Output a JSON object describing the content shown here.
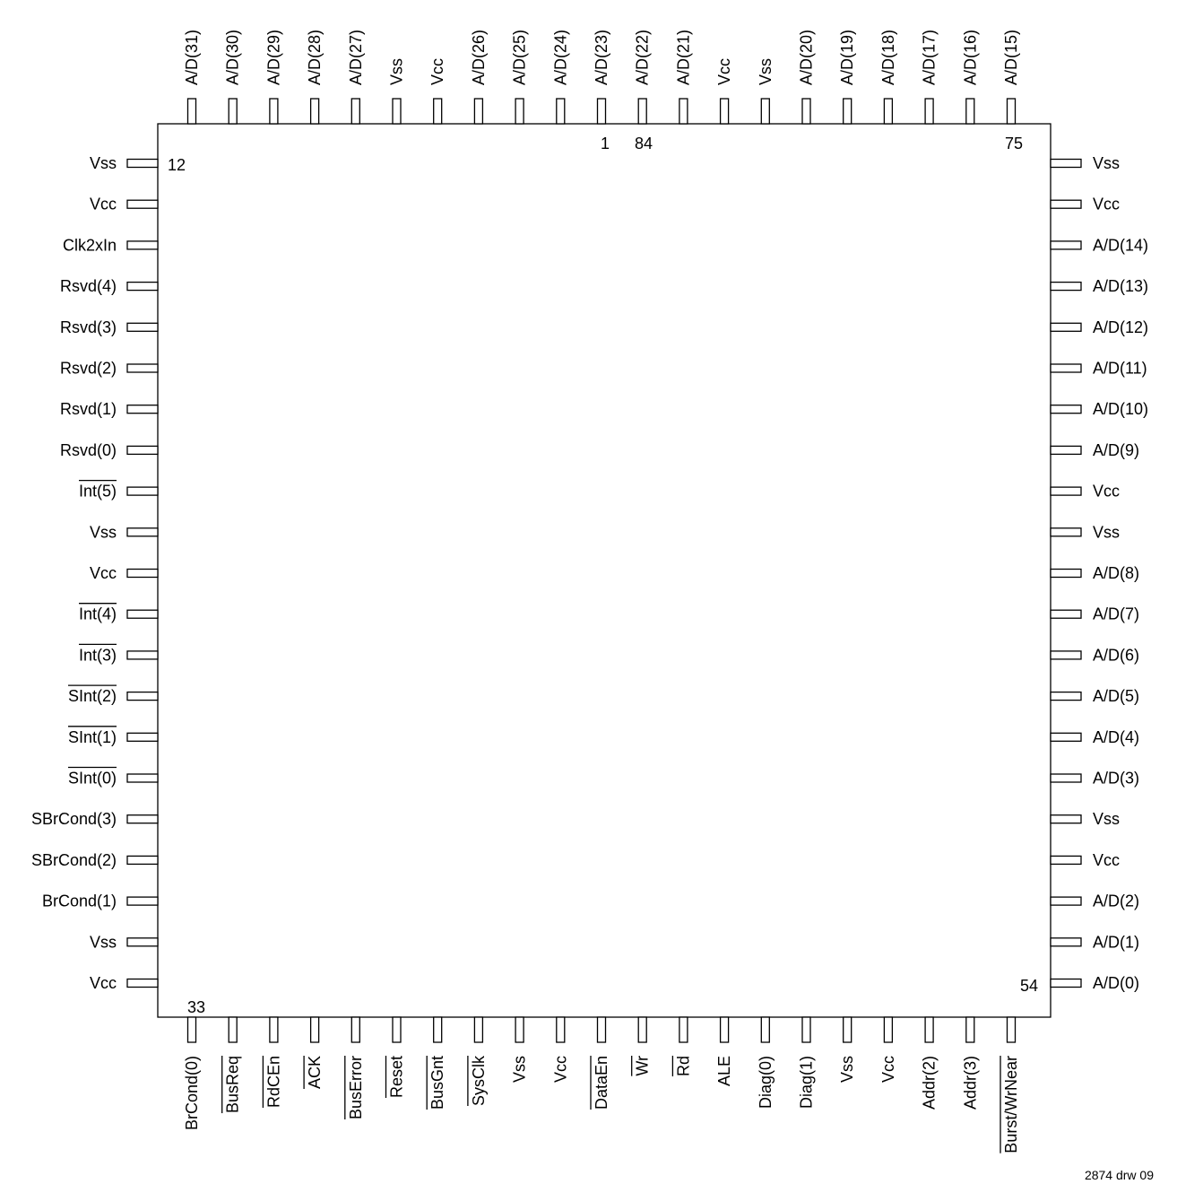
{
  "pins": {
    "top": [
      {
        "label": "A/D(31)"
      },
      {
        "label": "A/D(30)"
      },
      {
        "label": "A/D(29)"
      },
      {
        "label": "A/D(28)"
      },
      {
        "label": "A/D(27)"
      },
      {
        "label": "Vss"
      },
      {
        "label": "Vcc"
      },
      {
        "label": "A/D(26)"
      },
      {
        "label": "A/D(25)"
      },
      {
        "label": "A/D(24)"
      },
      {
        "label": "A/D(23)"
      },
      {
        "label": "A/D(22)"
      },
      {
        "label": "A/D(21)"
      },
      {
        "label": "Vcc"
      },
      {
        "label": "Vss"
      },
      {
        "label": "A/D(20)"
      },
      {
        "label": "A/D(19)"
      },
      {
        "label": "A/D(18)"
      },
      {
        "label": "A/D(17)"
      },
      {
        "label": "A/D(16)"
      },
      {
        "label": "A/D(15)"
      }
    ],
    "left": [
      {
        "label": "Vss"
      },
      {
        "label": "Vcc"
      },
      {
        "label": "Clk2xIn"
      },
      {
        "label": "Rsvd(4)"
      },
      {
        "label": "Rsvd(3)"
      },
      {
        "label": "Rsvd(2)"
      },
      {
        "label": "Rsvd(1)"
      },
      {
        "label": "Rsvd(0)"
      },
      {
        "label": "Int(5)",
        "overbar": "full"
      },
      {
        "label": "Vss"
      },
      {
        "label": "Vcc"
      },
      {
        "label": "Int(4)",
        "overbar": "full"
      },
      {
        "label": "Int(3)",
        "overbar": "full"
      },
      {
        "label": "SInt(2)",
        "overbar": "full"
      },
      {
        "label": "SInt(1)",
        "overbar": "full"
      },
      {
        "label": "SInt(0)",
        "overbar": "full"
      },
      {
        "label": "SBrCond(3)"
      },
      {
        "label": "SBrCond(2)"
      },
      {
        "label": "BrCond(1)"
      },
      {
        "label": "Vss"
      },
      {
        "label": "Vcc"
      }
    ],
    "right": [
      {
        "label": "Vss"
      },
      {
        "label": "Vcc"
      },
      {
        "label": "A/D(14)"
      },
      {
        "label": "A/D(13)"
      },
      {
        "label": "A/D(12)"
      },
      {
        "label": "A/D(11)"
      },
      {
        "label": "A/D(10)"
      },
      {
        "label": "A/D(9)"
      },
      {
        "label": "Vcc"
      },
      {
        "label": "Vss"
      },
      {
        "label": "A/D(8)"
      },
      {
        "label": "A/D(7)"
      },
      {
        "label": "A/D(6)"
      },
      {
        "label": "A/D(5)"
      },
      {
        "label": "A/D(4)"
      },
      {
        "label": "A/D(3)"
      },
      {
        "label": "Vss"
      },
      {
        "label": "Vcc"
      },
      {
        "label": "A/D(2)"
      },
      {
        "label": "A/D(1)"
      },
      {
        "label": "A/D(0)"
      }
    ],
    "bottom": [
      {
        "label": "BrCond(0)"
      },
      {
        "label": "BusReq",
        "overbar": "full"
      },
      {
        "label": "RdCEn",
        "overbar": "full"
      },
      {
        "label": "ACK",
        "overbar": "full"
      },
      {
        "label": "BusError",
        "overbar": "full"
      },
      {
        "label": "Reset",
        "overbar": "full"
      },
      {
        "label": "BusGnt",
        "overbar": "full"
      },
      {
        "label": "SysClk",
        "overbar": "full"
      },
      {
        "label": "Vss"
      },
      {
        "label": "Vcc"
      },
      {
        "label": "DataEn",
        "overbar": "full"
      },
      {
        "label": "Wr",
        "overbar": "full"
      },
      {
        "label": "Rd",
        "overbar": "full"
      },
      {
        "label": "ALE"
      },
      {
        "label": "Diag(0)"
      },
      {
        "label": "Diag(1)"
      },
      {
        "label": "Vss"
      },
      {
        "label": "Vcc"
      },
      {
        "label": "Addr(2)"
      },
      {
        "label": "Addr(3)"
      },
      {
        "label": "Burst/WrNear",
        "overbar": "full"
      }
    ]
  },
  "pin_numbers": {
    "top_center_a": "1",
    "top_center_b": "84",
    "top_right": "75",
    "left_top": "12",
    "bottom_left": "33",
    "bottom_right": "54"
  },
  "drawing_ref": "2874 drw 09"
}
